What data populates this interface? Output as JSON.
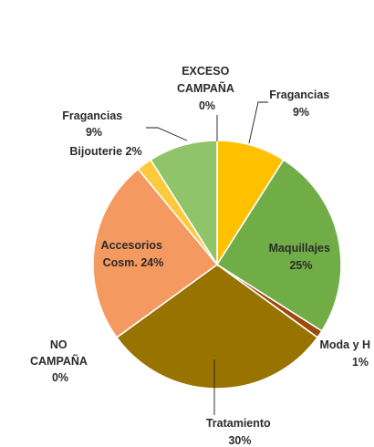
{
  "chart_data": {
    "type": "pie",
    "title": "",
    "start_angle_deg": 0,
    "direction": "clockwise",
    "slices": [
      {
        "name": "Fragancias",
        "value": 9,
        "pct_label": "9%",
        "color": "#FFC000"
      },
      {
        "name": "Maquillajes",
        "value": 25,
        "pct_label": "25%",
        "color": "#70AD47"
      },
      {
        "name": "Moda y H",
        "value": 1,
        "pct_label": "1%",
        "color": "#9E480E"
      },
      {
        "name": "Tratamiento",
        "value": 30,
        "pct_label": "30%",
        "color": "#997300"
      },
      {
        "name": "NO CAMPAÑA",
        "value": 0,
        "pct_label": "0%",
        "color": "#5B9BD5"
      },
      {
        "name": "Accesorios Cosm.",
        "value": 24,
        "pct_label": "24%",
        "color": "#F4995F"
      },
      {
        "name": "Bijouterie",
        "value": 2,
        "pct_label": "2%",
        "color": "#FFC93C"
      },
      {
        "name": "Fragancias",
        "value": 9,
        "pct_label": "9%",
        "color": "#8FC46A"
      },
      {
        "name": "EXCESO CAMPAÑA",
        "value": 0,
        "pct_label": "0%",
        "color": "#A5A5A5"
      }
    ],
    "legend": "none",
    "data_labels": "name-and-percent"
  },
  "labels": {
    "fragancias_a": {
      "l1": "Fragancias",
      "l2": "9%"
    },
    "maquillajes": {
      "l1": "Maquillajes",
      "l2": "25%"
    },
    "moda": {
      "l1": "Moda y H",
      "l2": "1%"
    },
    "tratamiento": {
      "l1": "Tratamiento",
      "l2": "30%"
    },
    "no_campana": {
      "l1": "NO",
      "l2": "CAMPAÑA",
      "l3": "0%"
    },
    "accesorios": {
      "l1": "Accesorios",
      "l2": "Cosm. 24%"
    },
    "bijouterie": {
      "l1": "Bijouterie 2%"
    },
    "fragancias_b": {
      "l1": "Fragancias",
      "l2": "9%"
    },
    "exceso": {
      "l1": "EXCESO",
      "l2": "CAMPAÑA",
      "l3": "0%"
    }
  }
}
